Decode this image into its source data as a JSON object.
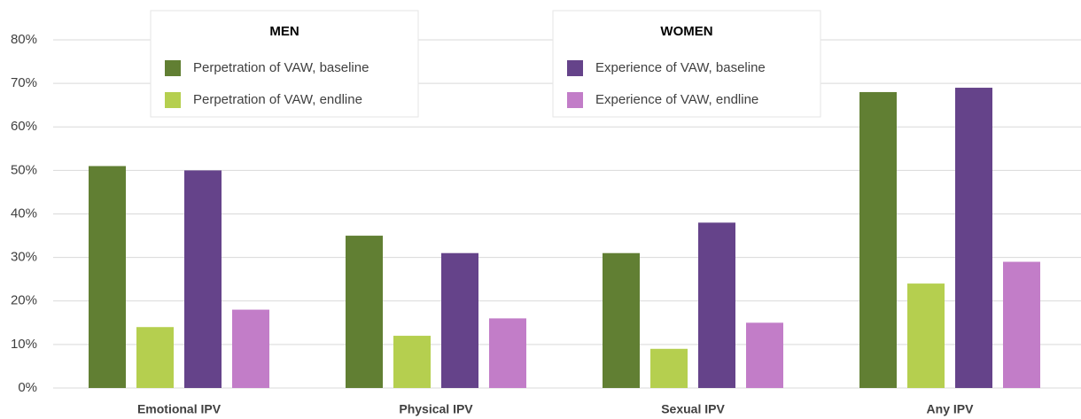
{
  "chart_data": {
    "type": "bar",
    "categories": [
      "Emotional IPV",
      "Physical IPV",
      "Sexual IPV",
      "Any IPV"
    ],
    "legend_titles": [
      "MEN",
      "WOMEN"
    ],
    "series": [
      {
        "name": "Perpetration of VAW, baseline",
        "color": "#617f33",
        "values": [
          51,
          35,
          31,
          68
        ]
      },
      {
        "name": "Perpetration of VAW, endline",
        "color": "#b5cf4f",
        "values": [
          14,
          12,
          9,
          24
        ]
      },
      {
        "name": "Experience of VAW, baseline",
        "color": "#65438a",
        "values": [
          50,
          31,
          38,
          69
        ]
      },
      {
        "name": "Experience of VAW, endline",
        "color": "#c27dc8",
        "values": [
          18,
          16,
          15,
          29
        ]
      }
    ],
    "ylim": [
      0,
      80
    ],
    "yticks": [
      {
        "value": 0,
        "label": "0%"
      },
      {
        "value": 10,
        "label": "10%"
      },
      {
        "value": 20,
        "label": "20%"
      },
      {
        "value": 30,
        "label": "30%"
      },
      {
        "value": 40,
        "label": "40%"
      },
      {
        "value": 50,
        "label": "50%"
      },
      {
        "value": 60,
        "label": "60%"
      },
      {
        "value": 70,
        "label": "70%"
      },
      {
        "value": 80,
        "label": "80%"
      }
    ],
    "grid": true
  }
}
